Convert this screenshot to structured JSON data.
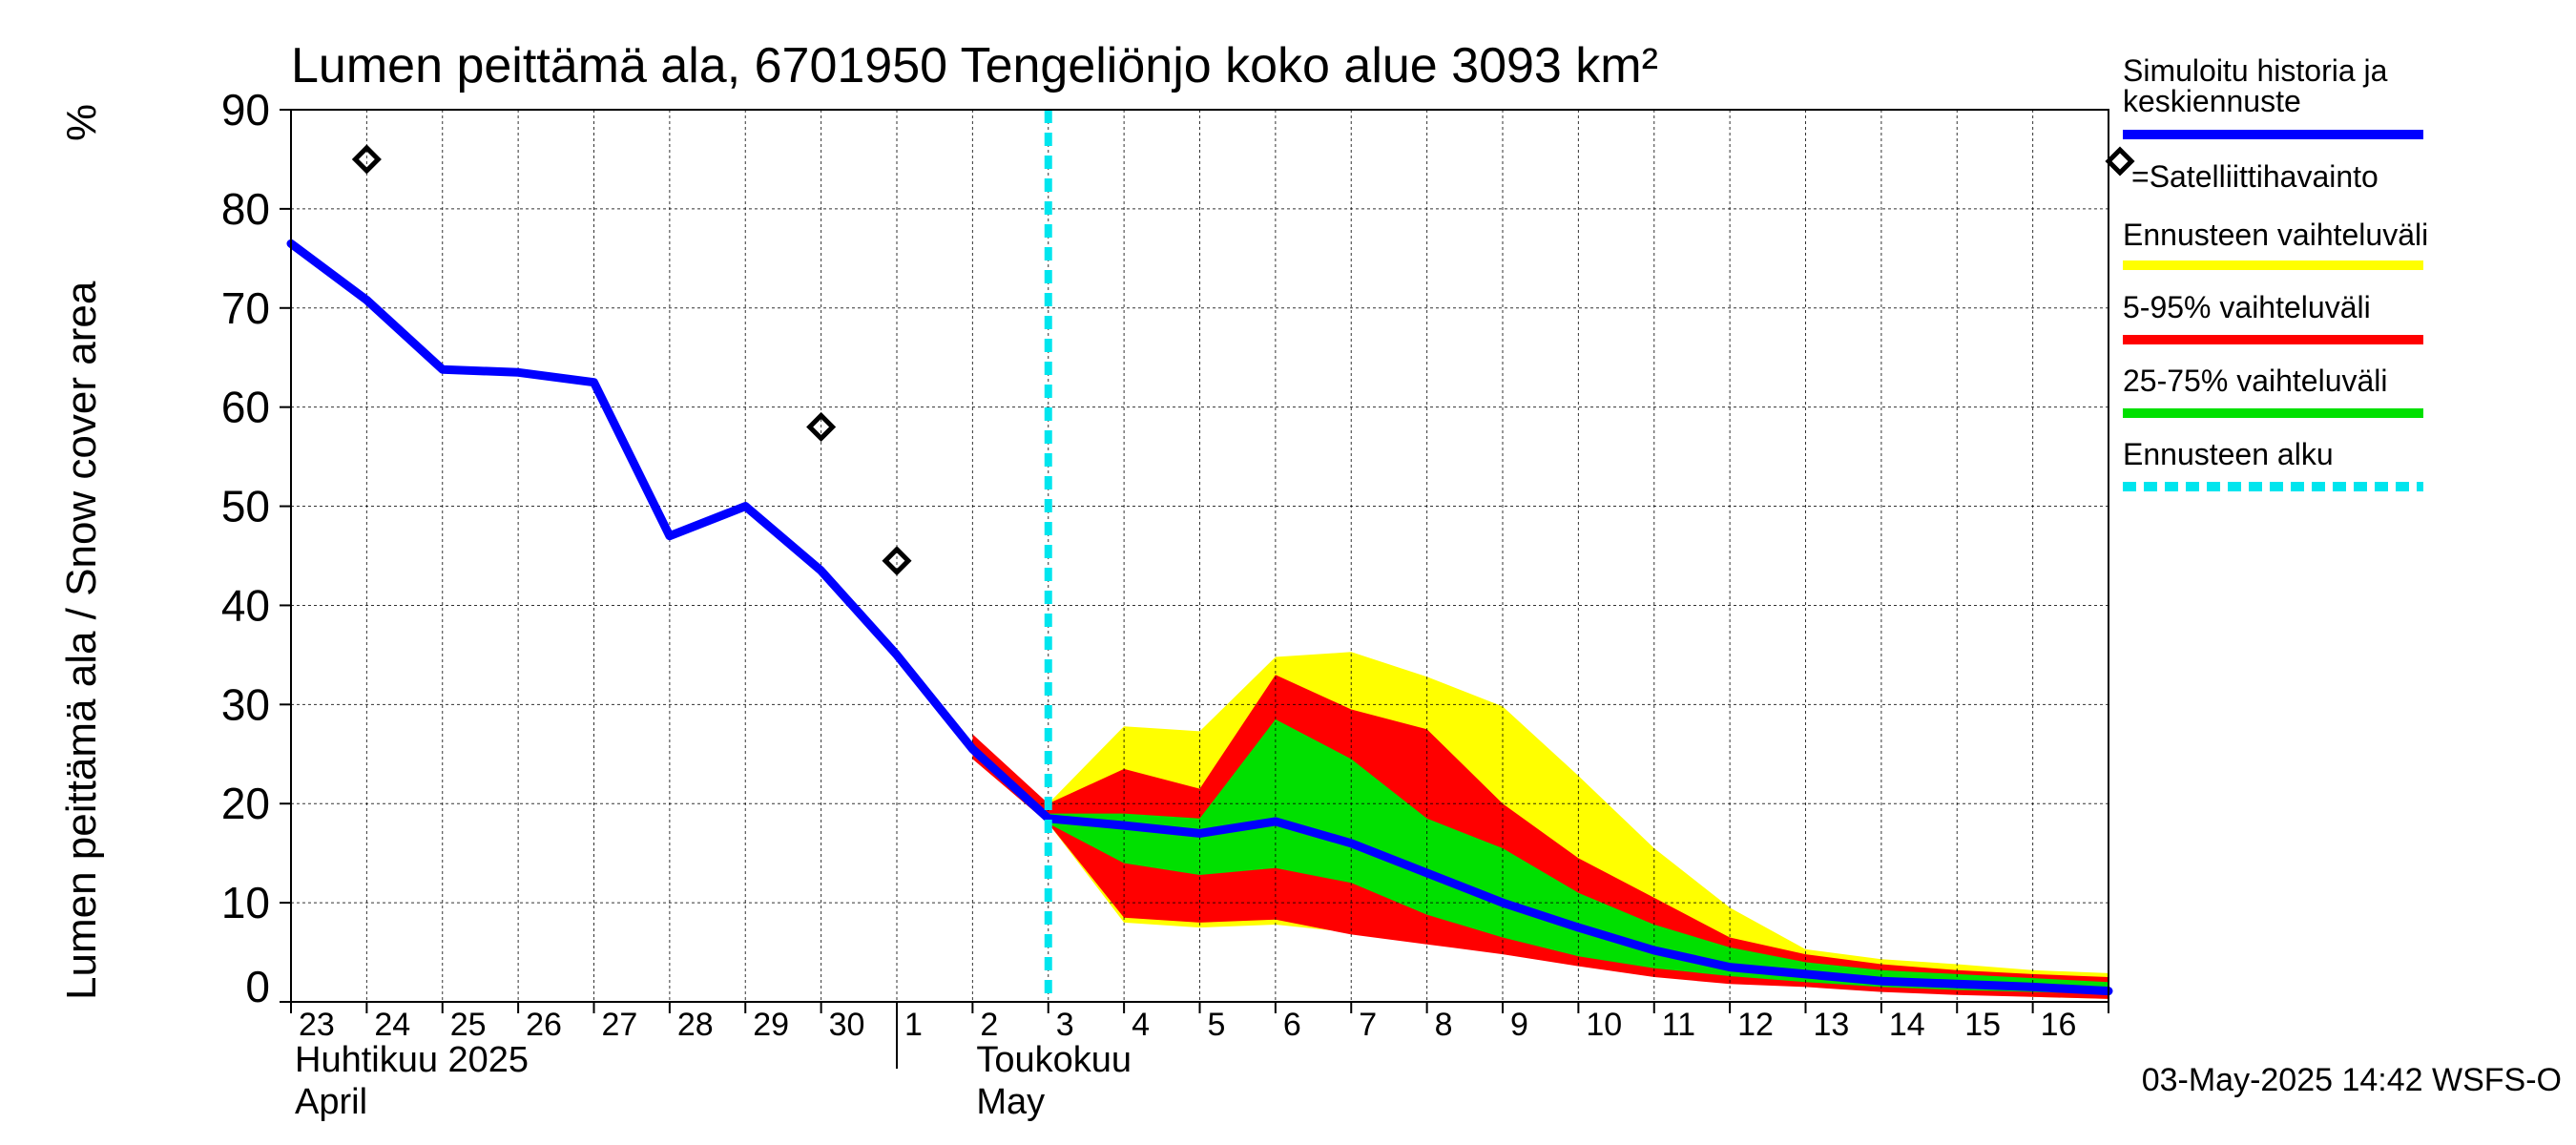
{
  "chart_data": {
    "type": "area",
    "title": "Lumen peittämä ala, 6701950 Tengeliönjo koko alue 3093 km²",
    "ylabel": "Lumen peittämä ala / Snow cover area",
    "yunit": "%",
    "ylim": [
      0,
      90
    ],
    "yticks": [
      0,
      10,
      20,
      30,
      40,
      50,
      60,
      70,
      80,
      90
    ],
    "grid": true,
    "x_start_day": 23,
    "x_end_day": 47,
    "day_labels": [
      {
        "day": 23,
        "label": "23"
      },
      {
        "day": 24,
        "label": "24"
      },
      {
        "day": 25,
        "label": "25"
      },
      {
        "day": 26,
        "label": "26"
      },
      {
        "day": 27,
        "label": "27"
      },
      {
        "day": 28,
        "label": "28"
      },
      {
        "day": 29,
        "label": "29"
      },
      {
        "day": 30,
        "label": "30"
      },
      {
        "day": 31,
        "label": "1"
      },
      {
        "day": 32,
        "label": "2"
      },
      {
        "day": 33,
        "label": "3"
      },
      {
        "day": 34,
        "label": "4"
      },
      {
        "day": 35,
        "label": "5"
      },
      {
        "day": 36,
        "label": "6"
      },
      {
        "day": 37,
        "label": "7"
      },
      {
        "day": 38,
        "label": "8"
      },
      {
        "day": 39,
        "label": "9"
      },
      {
        "day": 40,
        "label": "10"
      },
      {
        "day": 41,
        "label": "11"
      },
      {
        "day": 42,
        "label": "12"
      },
      {
        "day": 43,
        "label": "13"
      },
      {
        "day": 44,
        "label": "14"
      },
      {
        "day": 45,
        "label": "15"
      },
      {
        "day": 46,
        "label": "16"
      }
    ],
    "month_divider_day": 31,
    "month_labels": [
      {
        "day": 23,
        "fi": "Huhtikuu  2025",
        "en": "April"
      },
      {
        "day": 32,
        "fi": "Toukokuu",
        "en": "May"
      }
    ],
    "forecast_start_day": 33.0,
    "series": [
      {
        "name": "Simuloitu historia ja keskiennuste",
        "color": "#0000ff",
        "points": [
          [
            23,
            76.5
          ],
          [
            24,
            70.8
          ],
          [
            25,
            63.8
          ],
          [
            26,
            63.5
          ],
          [
            27,
            62.5
          ],
          [
            28,
            47
          ],
          [
            29,
            50
          ],
          [
            30,
            43.5
          ],
          [
            31,
            35
          ],
          [
            32,
            25.5
          ],
          [
            33,
            18.5
          ],
          [
            34,
            17.8
          ],
          [
            35,
            17
          ],
          [
            36,
            18.2
          ],
          [
            37,
            16
          ],
          [
            38,
            13
          ],
          [
            39,
            10
          ],
          [
            40,
            7.5
          ],
          [
            41,
            5.2
          ],
          [
            42,
            3.5
          ],
          [
            43,
            2.8
          ],
          [
            44,
            2.1
          ],
          [
            45,
            1.8
          ],
          [
            46,
            1.5
          ],
          [
            47,
            1.1
          ]
        ]
      }
    ],
    "bands": [
      {
        "name": "Ennusteen vaihteluväli",
        "color": "#ffff00",
        "upper": [
          [
            33,
            20
          ],
          [
            34,
            27.8
          ],
          [
            35,
            27.3
          ],
          [
            36,
            34.8
          ],
          [
            37,
            35.3
          ],
          [
            38,
            32.8
          ],
          [
            39,
            29.8
          ],
          [
            40,
            22.8
          ],
          [
            41,
            15.5
          ],
          [
            42,
            9.5
          ],
          [
            43,
            5.3
          ],
          [
            44,
            4.3
          ],
          [
            45,
            3.8
          ],
          [
            46,
            3.2
          ],
          [
            47,
            2.9
          ]
        ],
        "lower": [
          [
            33,
            18
          ],
          [
            34,
            8
          ],
          [
            35,
            7.5
          ],
          [
            36,
            7.8
          ],
          [
            37,
            7
          ],
          [
            38,
            6.3
          ],
          [
            39,
            5.3
          ],
          [
            40,
            4.2
          ],
          [
            41,
            3
          ],
          [
            42,
            2.2
          ],
          [
            43,
            1.7
          ],
          [
            44,
            1.2
          ],
          [
            45,
            0.8
          ],
          [
            46,
            0.5
          ],
          [
            47,
            0.3
          ]
        ]
      },
      {
        "name": "5-95% vaihteluväli",
        "color": "#ff0000",
        "upper": [
          [
            32,
            27
          ],
          [
            33,
            20
          ],
          [
            34,
            23.5
          ],
          [
            35,
            21.5
          ],
          [
            36,
            33
          ],
          [
            37,
            29.5
          ],
          [
            38,
            27.5
          ],
          [
            39,
            20
          ],
          [
            40,
            14.5
          ],
          [
            41,
            10.5
          ],
          [
            42,
            6.5
          ],
          [
            43,
            4.8
          ],
          [
            44,
            3.8
          ],
          [
            45,
            3.2
          ],
          [
            46,
            2.8
          ],
          [
            47,
            2.5
          ]
        ],
        "lower": [
          [
            32,
            24.5
          ],
          [
            33,
            18
          ],
          [
            34,
            8.5
          ],
          [
            35,
            8
          ],
          [
            36,
            8.3
          ],
          [
            37,
            6.8
          ],
          [
            38,
            5.8
          ],
          [
            39,
            4.8
          ],
          [
            40,
            3.6
          ],
          [
            41,
            2.5
          ],
          [
            42,
            1.8
          ],
          [
            43,
            1.5
          ],
          [
            44,
            1
          ],
          [
            45,
            0.7
          ],
          [
            46,
            0.5
          ],
          [
            47,
            0.3
          ]
        ]
      },
      {
        "name": "25-75% vaihteluväli",
        "color": "#00e000",
        "upper": [
          [
            33,
            19
          ],
          [
            34,
            19
          ],
          [
            35,
            18.5
          ],
          [
            36,
            28.5
          ],
          [
            37,
            24.5
          ],
          [
            38,
            18.5
          ],
          [
            39,
            15.5
          ],
          [
            40,
            11
          ],
          [
            41,
            7.8
          ],
          [
            42,
            5.5
          ],
          [
            43,
            4
          ],
          [
            44,
            3.2
          ],
          [
            45,
            2.8
          ],
          [
            46,
            2.4
          ],
          [
            47,
            2
          ]
        ],
        "lower": [
          [
            33,
            18
          ],
          [
            34,
            14
          ],
          [
            35,
            12.8
          ],
          [
            36,
            13.5
          ],
          [
            37,
            12
          ],
          [
            38,
            8.8
          ],
          [
            39,
            6.5
          ],
          [
            40,
            4.6
          ],
          [
            41,
            3.4
          ],
          [
            42,
            2.6
          ],
          [
            43,
            2
          ],
          [
            44,
            1.5
          ],
          [
            45,
            1.2
          ],
          [
            46,
            1
          ],
          [
            47,
            0.8
          ]
        ]
      }
    ],
    "satellite_observations": [
      [
        24,
        85
      ],
      [
        30,
        58
      ],
      [
        31,
        44.5
      ]
    ],
    "legend": [
      {
        "label": "Simuloitu historia ja keskiennuste",
        "color": "#0000ff",
        "style": "line"
      },
      {
        "label": "=Satelliittihavainto",
        "color": "#000000",
        "style": "diamond"
      },
      {
        "label": "Ennusteen vaihteluväli",
        "color": "#ffff00",
        "style": "line"
      },
      {
        "label": "5-95% vaihteluväli",
        "color": "#ff0000",
        "style": "line"
      },
      {
        "label": "25-75% vaihteluväli",
        "color": "#00e000",
        "style": "line"
      },
      {
        "label": "Ennusteen alku",
        "color": "#00e5ee",
        "style": "dashed"
      }
    ],
    "forecast_start_color": "#00e5ee",
    "timestamp": "03-May-2025 14:42 WSFS-O"
  }
}
